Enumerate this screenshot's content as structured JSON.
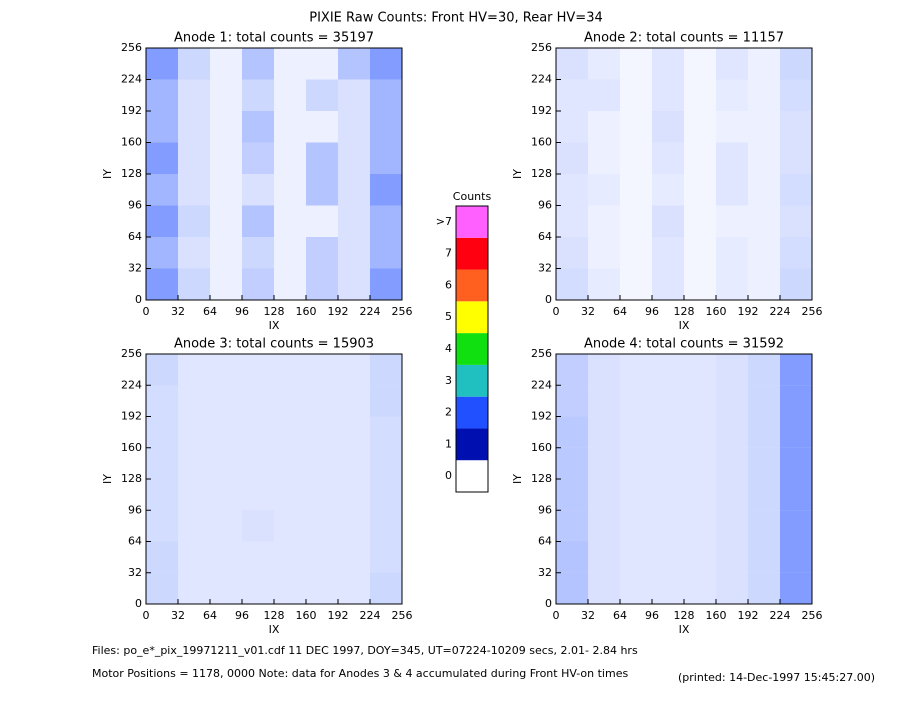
{
  "title": "PIXIE Raw Counts:  Front HV=30, Rear HV=34",
  "footer": [
    "Files: po_e*_pix_19971211_v01.cdf    11 DEC 1997, DOY=345, UT=07224-10209 secs,  2.01- 2.84 hrs",
    "Motor Positions = 1178, 0000   Note: data for Anodes 3 & 4 accumulated during Front HV-on times",
    "(printed: 14-Dec-1997 15:45:27.00)"
  ],
  "chart_data": [
    {
      "type": "heatmap",
      "title": "Anode 1: total counts = 35197",
      "xlabel": "IX",
      "ylabel": "IY",
      "xlim": [
        0,
        256
      ],
      "ylim": [
        0,
        256
      ],
      "xticks": [
        0,
        32,
        64,
        96,
        128,
        160,
        192,
        224,
        256
      ],
      "yticks": [
        0,
        32,
        64,
        96,
        128,
        160,
        192,
        224,
        256
      ],
      "color": "#2050ff",
      "values": [
        [
          2,
          0.8,
          0.3,
          1.2,
          0.3,
          0.3,
          1.2,
          2
        ],
        [
          1.5,
          0.6,
          0.3,
          0.8,
          0.3,
          0.8,
          0.6,
          1.5
        ],
        [
          1.5,
          0.6,
          0.3,
          1.2,
          0.3,
          0.3,
          0.6,
          1.5
        ],
        [
          2,
          0.6,
          0.3,
          1,
          0.3,
          1.2,
          0.6,
          1.5
        ],
        [
          1.5,
          0.6,
          0.3,
          0.6,
          0.3,
          1.2,
          0.6,
          2
        ],
        [
          2,
          0.8,
          0.3,
          1.2,
          0.3,
          0.3,
          0.6,
          1.5
        ],
        [
          1.5,
          0.6,
          0.3,
          0.8,
          0.3,
          1,
          0.6,
          1.5
        ],
        [
          2,
          0.8,
          0.3,
          1,
          0.3,
          1,
          0.6,
          2
        ]
      ]
    },
    {
      "type": "heatmap",
      "title": "Anode 2: total counts = 11157",
      "xlabel": "IX",
      "ylabel": "IY",
      "xlim": [
        0,
        256
      ],
      "ylim": [
        0,
        256
      ],
      "xticks": [
        0,
        32,
        64,
        96,
        128,
        160,
        192,
        224,
        256
      ],
      "yticks": [
        0,
        32,
        64,
        96,
        128,
        160,
        192,
        224,
        256
      ],
      "color": "#2050ff",
      "values": [
        [
          0.6,
          0.4,
          0.2,
          0.5,
          0.2,
          0.5,
          0.3,
          0.8
        ],
        [
          0.5,
          0.5,
          0.2,
          0.5,
          0.2,
          0.4,
          0.3,
          0.7
        ],
        [
          0.5,
          0.3,
          0.2,
          0.6,
          0.2,
          0.3,
          0.3,
          0.6
        ],
        [
          0.6,
          0.3,
          0.2,
          0.5,
          0.2,
          0.5,
          0.3,
          0.6
        ],
        [
          0.5,
          0.4,
          0.2,
          0.4,
          0.2,
          0.5,
          0.3,
          0.7
        ],
        [
          0.5,
          0.3,
          0.2,
          0.6,
          0.2,
          0.3,
          0.3,
          0.6
        ],
        [
          0.6,
          0.3,
          0.2,
          0.5,
          0.2,
          0.4,
          0.3,
          0.7
        ],
        [
          0.7,
          0.4,
          0.2,
          0.5,
          0.2,
          0.4,
          0.3,
          0.8
        ]
      ]
    },
    {
      "type": "heatmap",
      "title": "Anode 3: total counts = 15903",
      "xlabel": "IX",
      "ylabel": "IY",
      "xlim": [
        0,
        256
      ],
      "ylim": [
        0,
        256
      ],
      "xticks": [
        0,
        32,
        64,
        96,
        128,
        160,
        192,
        224,
        256
      ],
      "yticks": [
        0,
        32,
        64,
        96,
        128,
        160,
        192,
        224,
        256
      ],
      "color": "#2050ff",
      "values": [
        [
          0.8,
          0.5,
          0.5,
          0.5,
          0.5,
          0.5,
          0.5,
          0.8
        ],
        [
          0.7,
          0.5,
          0.5,
          0.5,
          0.5,
          0.5,
          0.5,
          0.8
        ],
        [
          0.7,
          0.5,
          0.5,
          0.5,
          0.5,
          0.5,
          0.5,
          0.7
        ],
        [
          0.7,
          0.5,
          0.5,
          0.5,
          0.5,
          0.5,
          0.5,
          0.7
        ],
        [
          0.7,
          0.5,
          0.5,
          0.5,
          0.5,
          0.5,
          0.5,
          0.7
        ],
        [
          0.7,
          0.5,
          0.5,
          0.6,
          0.5,
          0.5,
          0.5,
          0.7
        ],
        [
          0.8,
          0.5,
          0.5,
          0.5,
          0.5,
          0.5,
          0.5,
          0.7
        ],
        [
          0.8,
          0.5,
          0.5,
          0.5,
          0.5,
          0.5,
          0.5,
          0.8
        ]
      ]
    },
    {
      "type": "heatmap",
      "title": "Anode 4: total counts = 31592",
      "xlabel": "IX",
      "ylabel": "IY",
      "xlim": [
        0,
        256
      ],
      "ylim": [
        0,
        256
      ],
      "xticks": [
        0,
        32,
        64,
        96,
        128,
        160,
        192,
        224,
        256
      ],
      "yticks": [
        0,
        32,
        64,
        96,
        128,
        160,
        192,
        224,
        256
      ],
      "color": "#2050ff",
      "values": [
        [
          1,
          0.6,
          0.5,
          0.5,
          0.5,
          0.6,
          0.8,
          2
        ],
        [
          1,
          0.6,
          0.5,
          0.5,
          0.5,
          0.6,
          0.8,
          2
        ],
        [
          1.1,
          0.6,
          0.5,
          0.5,
          0.5,
          0.6,
          0.8,
          2
        ],
        [
          1.1,
          0.6,
          0.5,
          0.5,
          0.5,
          0.6,
          0.8,
          2
        ],
        [
          1.1,
          0.6,
          0.5,
          0.5,
          0.5,
          0.6,
          0.8,
          2
        ],
        [
          1.1,
          0.6,
          0.5,
          0.5,
          0.5,
          0.6,
          0.8,
          2
        ],
        [
          1.2,
          0.6,
          0.5,
          0.5,
          0.5,
          0.6,
          0.8,
          2
        ],
        [
          1.2,
          0.6,
          0.5,
          0.5,
          0.5,
          0.6,
          0.8,
          2
        ]
      ]
    },
    {
      "type": "colorbar",
      "title": "Counts",
      "labels": [
        "0",
        "1",
        "2",
        "3",
        "4",
        "5",
        "6",
        "7",
        ">7"
      ],
      "colors": [
        "#ffffff",
        "#0010b0",
        "#2050ff",
        "#20c0c0",
        "#10e010",
        "#ffff00",
        "#ff6020",
        "#ff0010",
        "#ff60ff"
      ]
    }
  ]
}
